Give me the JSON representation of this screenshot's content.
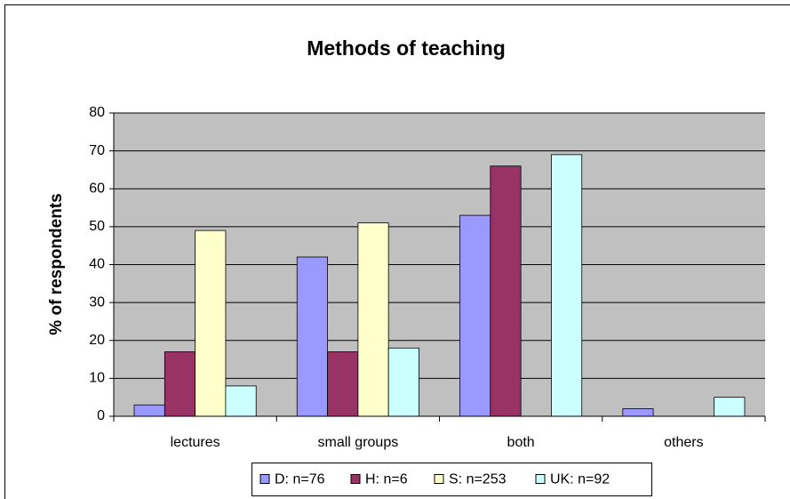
{
  "chart_data": {
    "type": "bar",
    "title": "Methods of teaching",
    "y_label": "% of respondents",
    "categories": [
      "lectures",
      "small groups",
      "both",
      "others"
    ],
    "series": [
      {
        "name": "D: n=76",
        "color": "#9999ff",
        "values": [
          3,
          42,
          53,
          2
        ]
      },
      {
        "name": "H: n=6",
        "color": "#993366",
        "values": [
          17,
          17,
          66,
          0
        ]
      },
      {
        "name": "S: n=253",
        "color": "#ffffcc",
        "values": [
          49,
          51,
          0,
          0
        ]
      },
      {
        "name": "UK: n=92",
        "color": "#ccffff",
        "values": [
          8,
          18,
          69,
          5
        ]
      }
    ],
    "ylim": [
      0,
      80
    ],
    "yticks": [
      0,
      10,
      20,
      30,
      40,
      50,
      60,
      70,
      80
    ],
    "grid": true,
    "legend": "bottom"
  }
}
